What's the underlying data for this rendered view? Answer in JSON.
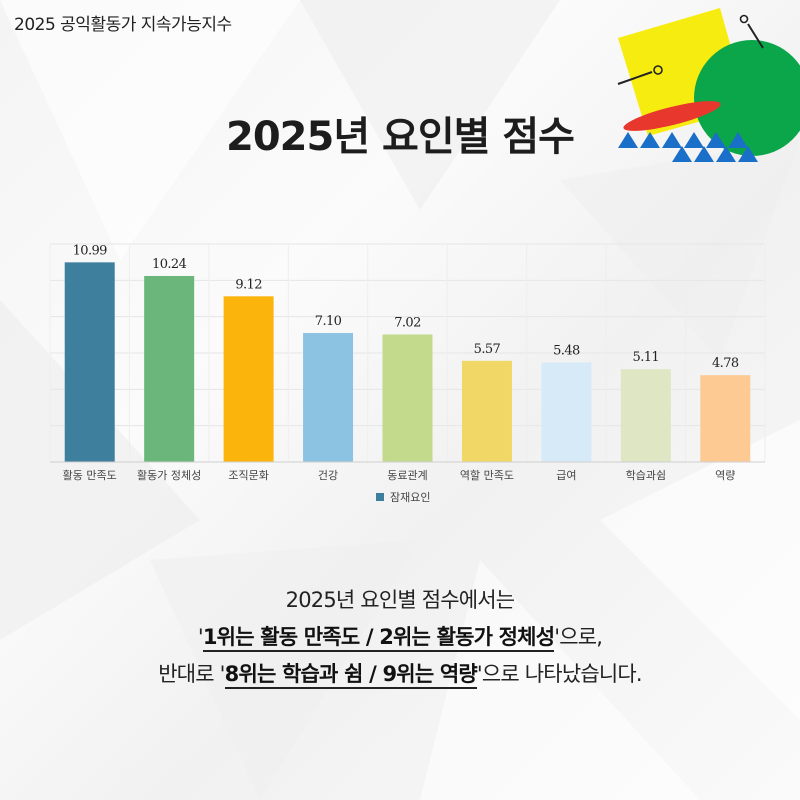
{
  "header": {
    "label": "2025 공익활동가 지속가능지수"
  },
  "title": "2025년 요인별 점수",
  "chart_data": {
    "type": "bar",
    "categories": [
      "활동 만족도",
      "활동가 정체성",
      "조직문화",
      "건강",
      "동료관계",
      "역할 만족도",
      "급여",
      "학습과쉼",
      "역량"
    ],
    "series": [
      {
        "name": "잠재요인",
        "values": [
          10.99,
          10.24,
          9.12,
          7.1,
          7.02,
          5.57,
          5.48,
          5.11,
          4.78
        ]
      }
    ],
    "value_labels": [
      "10.99",
      "10.24",
      "9.12",
      "7.10",
      "7.02",
      "5.57",
      "5.48",
      "5.11",
      "4.78"
    ],
    "bar_colors": [
      "#3f7f9e",
      "#6bb77b",
      "#fbb40b",
      "#8cc3e2",
      "#c3da8c",
      "#f1d766",
      "#d6ebf7",
      "#dfe6c4",
      "#fdca94"
    ],
    "legend_color": "#3f7f9e",
    "ylim": [
      0,
      12
    ],
    "grid": true,
    "legend_position": "bottom"
  },
  "summary": {
    "line1": "2025년 요인별 점수에서는",
    "line2_prefix": "'",
    "line2_highlight": "1위는 활동 만족도 / 2위는 활동가 정체성",
    "line2_suffix": "'으로,",
    "line3_prefix": "반대로 '",
    "line3_highlight": "8위는 학습과 쉼 / 9위는 역량",
    "line3_suffix": "'으로 나타났습니다."
  },
  "colors": {
    "deco_yellow": "#f7ec0f",
    "deco_green": "#0ba64a",
    "deco_red": "#e8382d",
    "deco_blue": "#1a6fc9"
  }
}
